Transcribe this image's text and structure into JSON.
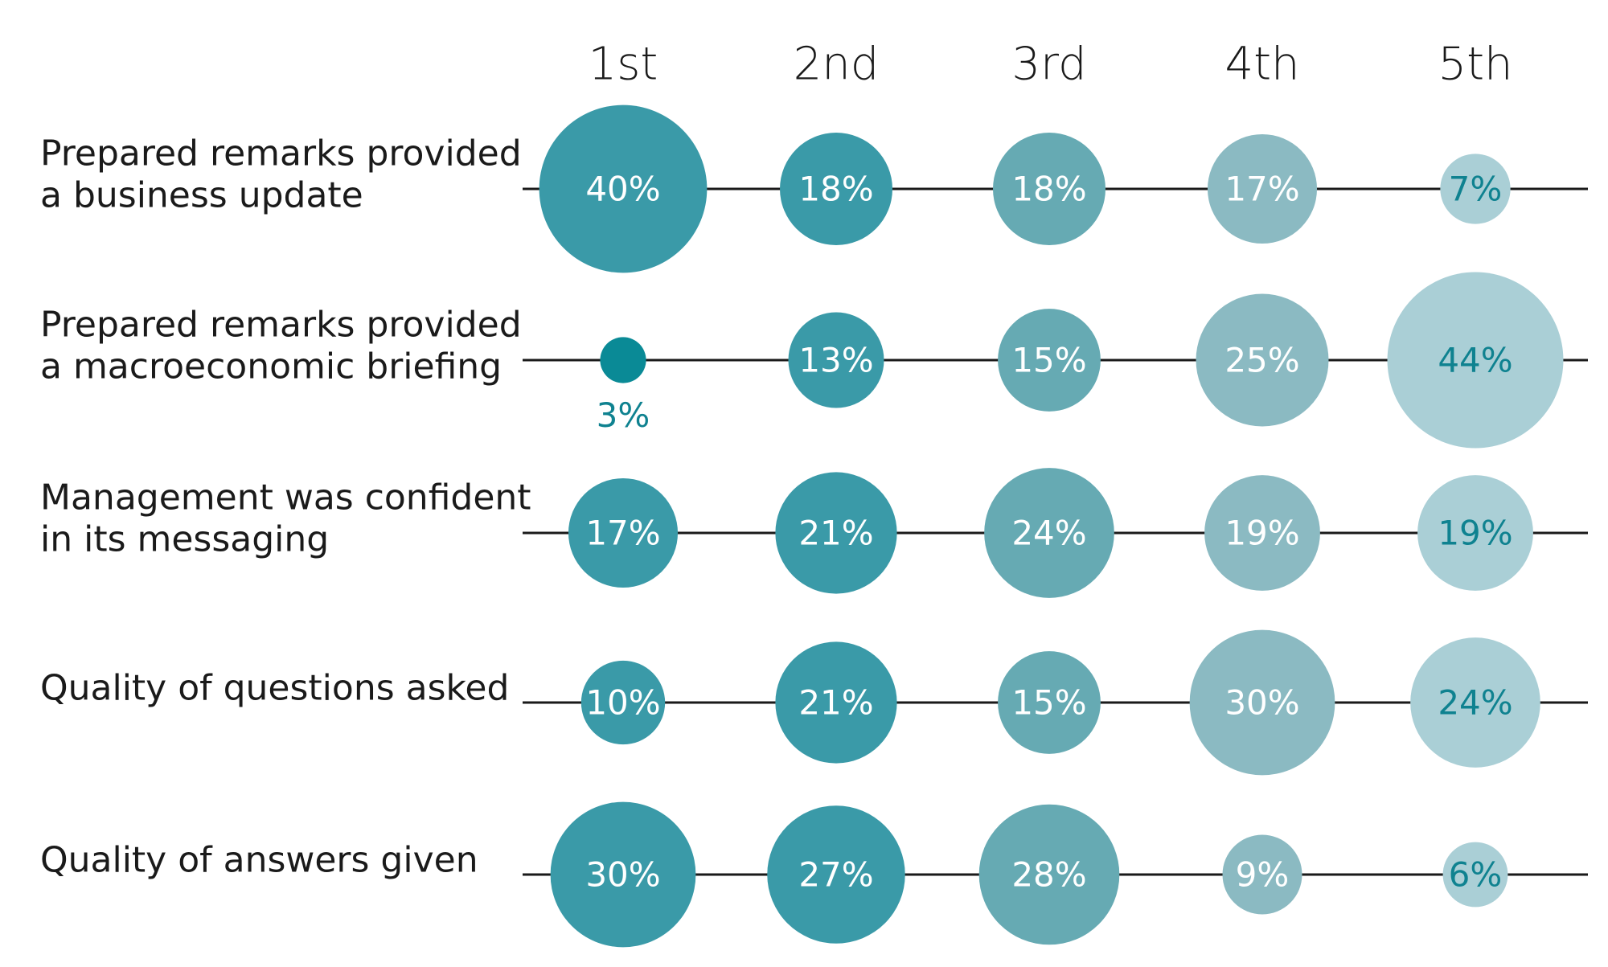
{
  "chart_data": {
    "type": "bubble-matrix",
    "columns": [
      "1st",
      "2nd",
      "3rd",
      "4th",
      "5th"
    ],
    "rows": [
      {
        "label_lines": [
          "Prepared remarks provided",
          "a business update"
        ],
        "values": [
          40,
          18,
          18,
          17,
          7
        ],
        "labels": [
          "40%",
          "18%",
          "18%",
          "17%",
          "7%"
        ]
      },
      {
        "label_lines": [
          "Prepared remarks provided",
          "a macroeconomic briefing"
        ],
        "values": [
          3,
          13,
          15,
          25,
          44
        ],
        "labels": [
          "3%",
          "13%",
          "15%",
          "25%",
          "44%"
        ]
      },
      {
        "label_lines": [
          "Management was confident",
          "in its messaging"
        ],
        "values": [
          17,
          21,
          24,
          19,
          19
        ],
        "labels": [
          "17%",
          "21%",
          "24%",
          "19%",
          "19%"
        ]
      },
      {
        "label_lines": [
          "Quality of questions asked"
        ],
        "values": [
          10,
          21,
          15,
          30,
          24
        ],
        "labels": [
          "10%",
          "21%",
          "15%",
          "30%",
          "24%"
        ]
      },
      {
        "label_lines": [
          "Quality of answers given"
        ],
        "values": [
          30,
          27,
          28,
          9,
          6
        ],
        "labels": [
          "30%",
          "27%",
          "28%",
          "9%",
          "6%"
        ]
      }
    ],
    "column_colors": [
      "#3a9aa8",
      "#3a9aa8",
      "#66aab3",
      "#8bbac2",
      "#aacfd6"
    ],
    "small_value_color": "#0a8a96",
    "dark_text_color": "#0f8290",
    "light_text_color": "#ffffff"
  }
}
